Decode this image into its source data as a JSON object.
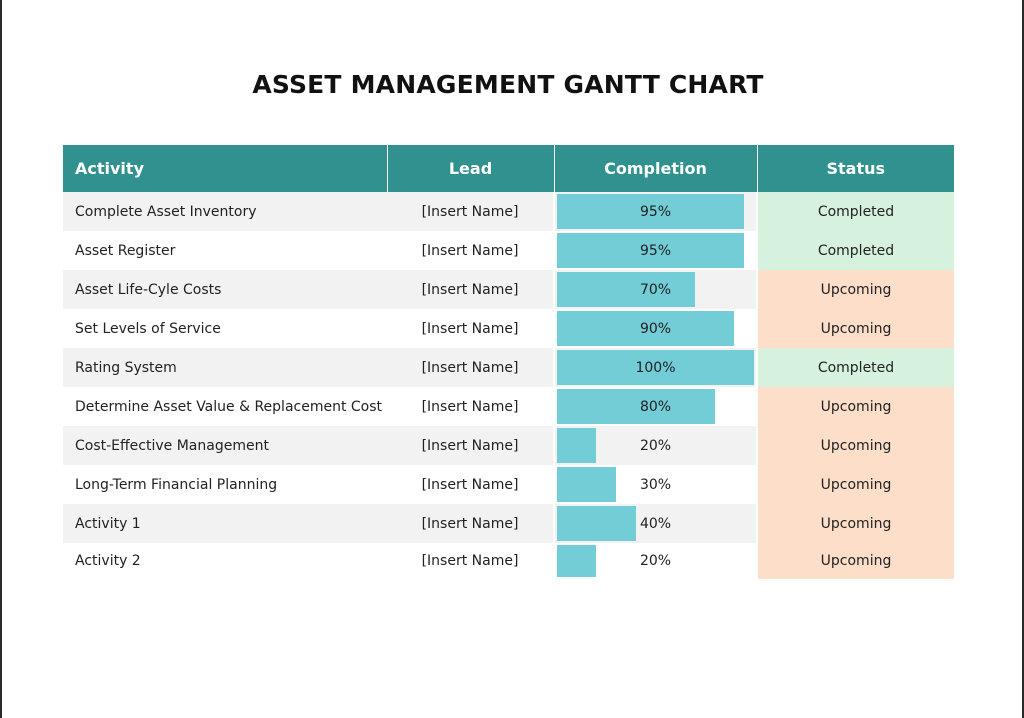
{
  "title": "ASSET MANAGEMENT GANTT CHART",
  "headers": {
    "activity": "Activity",
    "lead": "Lead",
    "completion": "Completion",
    "status": "Status"
  },
  "colors": {
    "header": "#31918f",
    "bar": "#72cdd6",
    "completed": "#d6f1dd",
    "upcoming": "#fddec9",
    "row_shade": "#f2f2f2"
  },
  "rows": [
    {
      "activity": "Complete Asset Inventory",
      "lead": "[Insert Name]",
      "completion": 95,
      "completion_label": "95%",
      "status": "Completed"
    },
    {
      "activity": "Asset Register",
      "lead": "[Insert Name]",
      "completion": 95,
      "completion_label": "95%",
      "status": "Completed"
    },
    {
      "activity": "Asset Life-Cyle Costs",
      "lead": "[Insert Name]",
      "completion": 70,
      "completion_label": "70%",
      "status": "Upcoming"
    },
    {
      "activity": "Set Levels of Service",
      "lead": "[Insert Name]",
      "completion": 90,
      "completion_label": "90%",
      "status": "Upcoming"
    },
    {
      "activity": "Rating System",
      "lead": "[Insert Name]",
      "completion": 100,
      "completion_label": "100%",
      "status": "Completed"
    },
    {
      "activity": "Determine Asset Value & Replacement Cost",
      "lead": "[Insert Name]",
      "completion": 80,
      "completion_label": "80%",
      "status": "Upcoming"
    },
    {
      "activity": "Cost-Effective Management",
      "lead": "[Insert Name]",
      "completion": 20,
      "completion_label": "20%",
      "status": "Upcoming"
    },
    {
      "activity": "Long-Term Financial Planning",
      "lead": "[Insert Name]",
      "completion": 30,
      "completion_label": "30%",
      "status": "Upcoming"
    },
    {
      "activity": "Activity 1",
      "lead": "[Insert Name]",
      "completion": 40,
      "completion_label": "40%",
      "status": "Upcoming"
    },
    {
      "activity": "Activity 2",
      "lead": "[Insert Name]",
      "completion": 20,
      "completion_label": "20%",
      "status": "Upcoming"
    }
  ]
}
